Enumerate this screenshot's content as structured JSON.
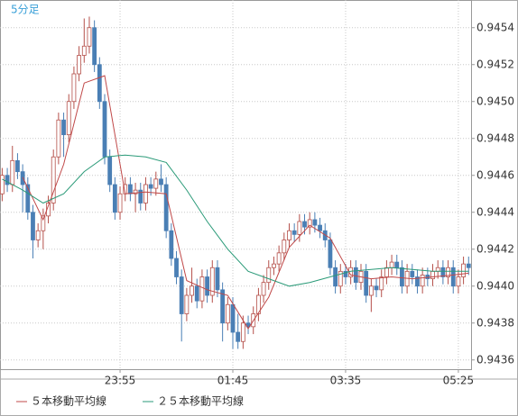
{
  "chart_data": {
    "type": "candlestick",
    "title": "5分足",
    "categories": [
      null,
      null,
      null,
      null,
      null,
      null,
      null,
      null,
      null,
      null,
      null,
      null,
      null,
      null,
      null,
      null,
      null,
      null,
      null,
      null,
      null,
      null,
      null,
      "23:55",
      null,
      null,
      null,
      null,
      null,
      null,
      null,
      null,
      null,
      null,
      null,
      null,
      null,
      null,
      null,
      null,
      null,
      null,
      null,
      null,
      null,
      "01:45",
      null,
      null,
      null,
      null,
      null,
      null,
      null,
      null,
      null,
      null,
      null,
      null,
      null,
      null,
      null,
      null,
      null,
      null,
      null,
      null,
      null,
      "03:35",
      null,
      null,
      null,
      null,
      null,
      null,
      null,
      null,
      null,
      null,
      null,
      null,
      null,
      null,
      null,
      null,
      null,
      null,
      null,
      null,
      null,
      "05:25",
      null,
      null
    ],
    "open": [
      0.9445,
      0.9446,
      0.94455,
      0.94468,
      0.94462,
      0.94455,
      0.9444,
      0.94425,
      0.9443,
      0.94438,
      0.94445,
      0.9447,
      0.9449,
      0.94482,
      0.945,
      0.94515,
      0.94525,
      0.9453,
      0.9454,
      0.9452,
      0.945,
      0.9447,
      0.94455,
      0.9444,
      0.9445,
      0.94455,
      0.9445,
      0.94452,
      0.94445,
      0.94455,
      0.94453,
      0.94458,
      0.94455,
      0.9443,
      0.94415,
      0.94405,
      0.94385,
      0.94395,
      0.944,
      0.94392,
      0.94405,
      0.94395,
      0.9441,
      0.94398,
      0.9438,
      0.9439,
      0.94375,
      0.9437,
      0.9438,
      0.94378,
      0.94385,
      0.94395,
      0.94402,
      0.9441,
      0.94412,
      0.94418,
      0.94425,
      0.9443,
      0.94428,
      0.94435,
      0.94432,
      0.94436,
      0.94433,
      0.9443,
      0.94425,
      0.9441,
      0.944,
      0.94408,
      0.94405,
      0.9441,
      0.94402,
      0.94408,
      0.94395,
      0.944,
      0.94398,
      0.94405,
      0.9441,
      0.94413,
      0.9441,
      0.944,
      0.94408,
      0.94405,
      0.944,
      0.94406,
      0.94404,
      0.94408,
      0.9441,
      0.94405,
      0.9441,
      0.944,
      0.94405,
      0.94412
    ],
    "high": [
      0.94464,
      0.94464,
      0.94476,
      0.94472,
      0.94466,
      0.94459,
      0.94444,
      0.94434,
      0.94442,
      0.94449,
      0.94474,
      0.94494,
      0.94494,
      0.94504,
      0.94519,
      0.9453,
      0.94545,
      0.94546,
      0.94544,
      0.94524,
      0.94504,
      0.94474,
      0.94459,
      0.94454,
      0.94459,
      0.94459,
      0.94456,
      0.94456,
      0.94459,
      0.94459,
      0.94462,
      0.94466,
      0.94459,
      0.94434,
      0.94419,
      0.94409,
      0.94399,
      0.9441,
      0.94404,
      0.94409,
      0.94409,
      0.94414,
      0.94414,
      0.94402,
      0.94394,
      0.94394,
      0.94385,
      0.94384,
      0.94384,
      0.94389,
      0.94399,
      0.94406,
      0.94414,
      0.94416,
      0.94422,
      0.94429,
      0.94434,
      0.94434,
      0.94439,
      0.94439,
      0.9444,
      0.9444,
      0.94437,
      0.94434,
      0.94429,
      0.94414,
      0.94412,
      0.94412,
      0.94414,
      0.94414,
      0.94412,
      0.94412,
      0.94404,
      0.94404,
      0.94409,
      0.94414,
      0.94417,
      0.94417,
      0.94414,
      0.94412,
      0.94412,
      0.94409,
      0.9441,
      0.9441,
      0.94412,
      0.94414,
      0.94414,
      0.94414,
      0.94414,
      0.94409,
      0.94416,
      0.94416
    ],
    "low": [
      0.94446,
      0.94451,
      0.94451,
      0.94458,
      0.9444,
      0.94436,
      0.94415,
      0.94421,
      0.9442,
      0.94434,
      0.94441,
      0.94466,
      0.9447,
      0.94478,
      0.94496,
      0.94511,
      0.94521,
      0.94526,
      0.94516,
      0.94496,
      0.94466,
      0.94451,
      0.94436,
      0.94436,
      0.94446,
      0.94446,
      0.9444,
      0.94441,
      0.94441,
      0.94449,
      0.94449,
      0.94451,
      0.94426,
      0.94411,
      0.94401,
      0.9437,
      0.94381,
      0.94391,
      0.94388,
      0.94388,
      0.94391,
      0.94391,
      0.94394,
      0.9437,
      0.94376,
      0.94366,
      0.94366,
      0.94366,
      0.94374,
      0.94374,
      0.94381,
      0.94391,
      0.94398,
      0.94406,
      0.94408,
      0.94414,
      0.94421,
      0.94424,
      0.94424,
      0.94428,
      0.94428,
      0.94429,
      0.94426,
      0.94421,
      0.94406,
      0.94396,
      0.94396,
      0.94401,
      0.94401,
      0.94398,
      0.94398,
      0.94391,
      0.94386,
      0.94394,
      0.94394,
      0.94401,
      0.94406,
      0.94406,
      0.94396,
      0.94396,
      0.94401,
      0.94396,
      0.94396,
      0.944,
      0.944,
      0.94404,
      0.94401,
      0.94401,
      0.94396,
      0.94396,
      0.94401,
      0.94406
    ],
    "close": [
      0.9446,
      0.94455,
      0.94468,
      0.94462,
      0.94455,
      0.9444,
      0.94425,
      0.9443,
      0.94438,
      0.94445,
      0.9447,
      0.9449,
      0.94482,
      0.945,
      0.94515,
      0.94525,
      0.9453,
      0.9454,
      0.9452,
      0.945,
      0.9447,
      0.94455,
      0.9444,
      0.9445,
      0.94455,
      0.9445,
      0.94452,
      0.94445,
      0.94455,
      0.94453,
      0.94458,
      0.94455,
      0.9443,
      0.94415,
      0.94405,
      0.94385,
      0.94395,
      0.944,
      0.94392,
      0.94405,
      0.94395,
      0.9441,
      0.94398,
      0.9438,
      0.9439,
      0.94375,
      0.9437,
      0.9438,
      0.94378,
      0.94385,
      0.94395,
      0.94402,
      0.9441,
      0.94412,
      0.94418,
      0.94425,
      0.9443,
      0.94428,
      0.94435,
      0.94432,
      0.94436,
      0.94433,
      0.9443,
      0.94425,
      0.9441,
      0.944,
      0.94408,
      0.94405,
      0.9441,
      0.94402,
      0.94408,
      0.94395,
      0.944,
      0.94398,
      0.94405,
      0.9441,
      0.94413,
      0.9441,
      0.944,
      0.94408,
      0.94405,
      0.944,
      0.94406,
      0.94404,
      0.94408,
      0.9441,
      0.94405,
      0.9441,
      0.944,
      0.94405,
      0.94412,
      0.9441
    ],
    "up_color": "#b5504a",
    "down_color": "#4a7fb5",
    "series": [
      {
        "name": "５本移動平均線",
        "color": "#c04848",
        "x": [
          4,
          8,
          12,
          16,
          20,
          24,
          28,
          32,
          36,
          40,
          44,
          48,
          52,
          56,
          60,
          64,
          68,
          72,
          76,
          80,
          84,
          88,
          91
        ],
        "values": [
          0.94459,
          0.94436,
          0.94466,
          0.9451,
          0.94514,
          0.9445,
          0.94451,
          0.9445,
          0.94403,
          0.94398,
          0.94395,
          0.94377,
          0.94394,
          0.94421,
          0.94433,
          0.94426,
          0.94406,
          0.94404,
          0.94405,
          0.94404,
          0.94405,
          0.94406,
          0.94407
        ]
      },
      {
        "name": "２５本移動平均線",
        "color": "#2a9a78",
        "x": [
          0,
          4,
          8,
          12,
          16,
          20,
          24,
          28,
          32,
          36,
          40,
          44,
          48,
          52,
          56,
          60,
          64,
          68,
          72,
          76,
          80,
          84,
          88,
          91
        ],
        "values": [
          0.94458,
          0.94452,
          0.94445,
          0.9445,
          0.94462,
          0.9447,
          0.94471,
          0.9447,
          0.94467,
          0.94452,
          0.94435,
          0.9442,
          0.94408,
          0.94404,
          0.944,
          0.94402,
          0.94405,
          0.94408,
          0.94409,
          0.9441,
          0.94409,
          0.94408,
          0.94408,
          0.94408
        ]
      }
    ],
    "ylim": [
      0.94355,
      0.94555
    ],
    "yticks": [
      0.9436,
      0.9438,
      {
        "value": 0.944,
        "label": "0.9440"
      },
      0.9442,
      0.9444,
      0.9446,
      0.9448,
      {
        "value": 0.945,
        "label": "0.9450"
      },
      0.9452,
      0.9454
    ],
    "grid": true
  }
}
